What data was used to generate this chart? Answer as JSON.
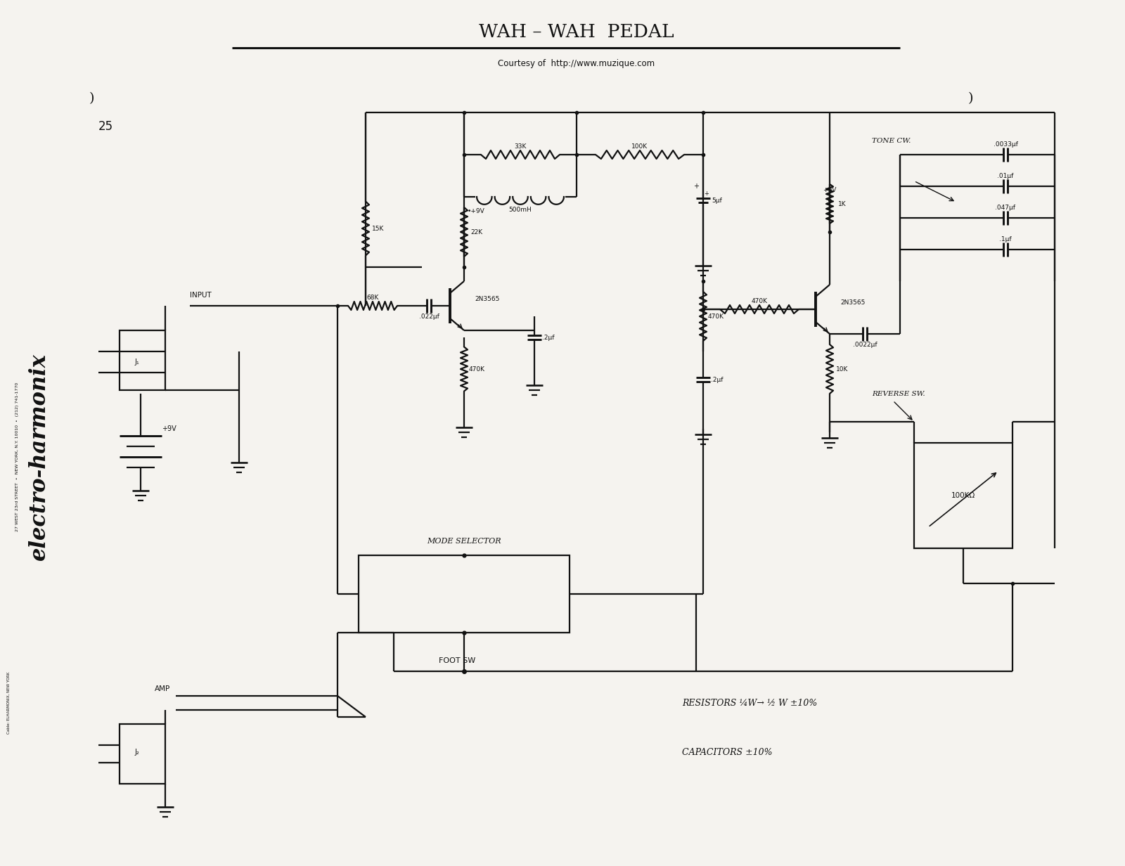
{
  "title": "WAH – WAH  PEDAL",
  "subtitle": "Courtesy of  http://www.muzique.com",
  "bg_color": "#f5f3ef",
  "line_color": "#111111",
  "text_color": "#111111",
  "lw": 1.6,
  "page_num": "25"
}
